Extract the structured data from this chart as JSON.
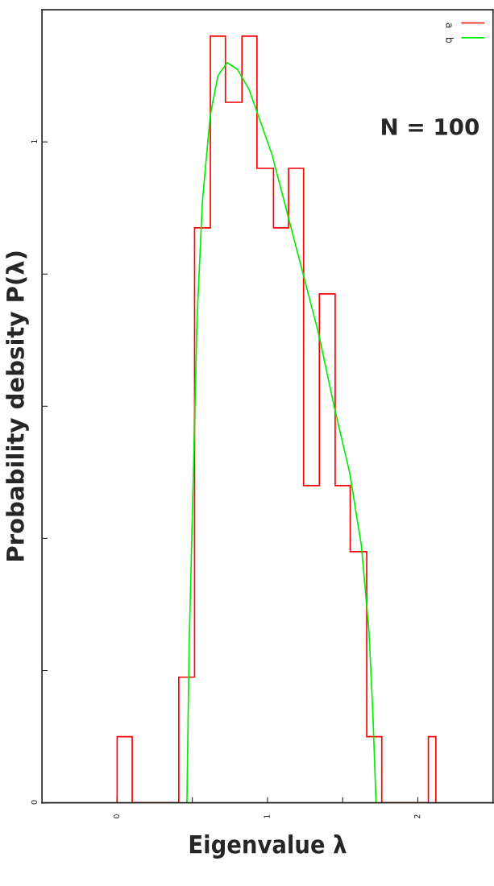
{
  "chart_data": {
    "type": "histogram",
    "xlabel": "Eigenvalue λ",
    "ylabel": "Probability debsity P(λ)",
    "annotations": [
      "N = 100"
    ],
    "bins": [
      0,
      0.1,
      0.41,
      0.515,
      0.62,
      0.72,
      0.83,
      0.93,
      1.04,
      1.14,
      1.24,
      1.345,
      1.45,
      1.55,
      1.66,
      1.76,
      2.07,
      2.12
    ],
    "series": [
      {
        "name": "a",
        "color": "#ff0000",
        "values": [
          0.1,
          0,
          0.19,
          0.87,
          1.16,
          1.06,
          1.16,
          0.96,
          0.87,
          0.96,
          0.48,
          0.77,
          0.48,
          0.38,
          0.1,
          0,
          0.1
        ]
      },
      {
        "name": "b",
        "type": "line",
        "color": "#00ee00",
        "x": [
          0.464,
          0.479,
          0.505,
          0.531,
          0.567,
          0.619,
          0.67,
          0.732,
          0.799,
          0.876,
          0.954,
          1.031,
          1.134,
          1.237,
          1.34,
          1.443,
          1.546,
          1.624,
          1.675,
          1.7,
          1.722
        ],
        "values": [
          0,
          0.24,
          0.48,
          0.73,
          0.91,
          1.04,
          1.1,
          1.12,
          1.11,
          1.08,
          1.03,
          0.98,
          0.89,
          0.8,
          0.71,
          0.6,
          0.5,
          0.39,
          0.26,
          0.14,
          0
        ]
      }
    ],
    "xlim": [
      -0.5,
      2.5
    ],
    "ylim": [
      0,
      1.2
    ],
    "xticks": [
      0,
      {
        "value": 0.5,
        "label": null
      },
      1,
      {
        "value": 1.5,
        "label": null
      },
      2
    ],
    "yticks": [
      0,
      {
        "value": 0.2,
        "label": null
      },
      {
        "value": 0.4,
        "label": null
      },
      {
        "value": 0.6,
        "label": null
      },
      {
        "value": 0.8,
        "label": null
      },
      1
    ],
    "legend": "top right",
    "grid": false
  }
}
